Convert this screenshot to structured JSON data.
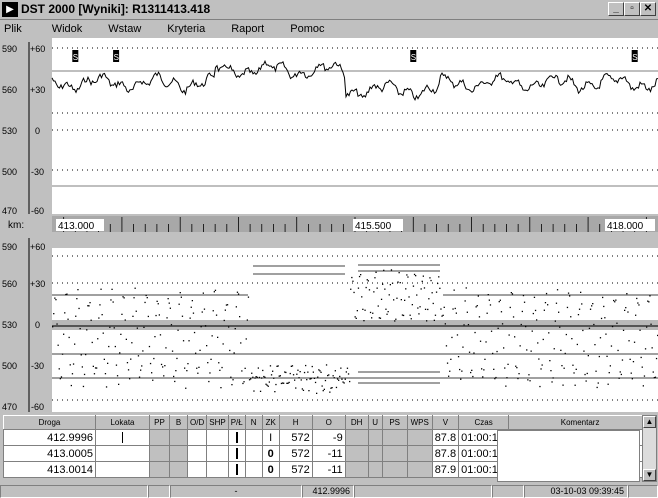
{
  "window": {
    "title": "DST 2000 [Wyniki]:  R1311413.418",
    "icon_glyph": "▶",
    "minimize_glyph": "_",
    "maximize_glyph": "▫",
    "close_glyph": "✕"
  },
  "menu": [
    "Plik",
    "Widok",
    "Wstaw",
    "Kryteria",
    "Raport",
    "Pomoc"
  ],
  "chart_data": [
    {
      "type": "line",
      "panel": "top",
      "y_left_ticks": [
        "590",
        "560",
        "530",
        "500",
        "470"
      ],
      "y_inner_ticks": [
        "+60",
        "+30",
        "0",
        "-30",
        "-60"
      ],
      "ylim": [
        470,
        590
      ],
      "markers": [
        "S",
        "S",
        "S",
        "S"
      ],
      "marker_km": [
        413.1,
        413.45,
        416.0,
        417.9
      ]
    },
    {
      "type": "line",
      "panel": "km-axis",
      "xlabel": "km:",
      "x_ticks": [
        "413.000",
        "415.500",
        "418.000"
      ]
    },
    {
      "type": "scatter",
      "panel": "bottom",
      "y_left_ticks": [
        "590",
        "560",
        "530",
        "500",
        "470"
      ],
      "y_inner_ticks": [
        "+60",
        "+30",
        "0",
        "-30",
        "-60"
      ],
      "ylim": [
        470,
        590
      ]
    }
  ],
  "table": {
    "headers": [
      "Droga",
      "Lokata",
      "PP",
      "B",
      "O/D",
      "SHP",
      "P/Ł",
      "N",
      "ZK",
      "H",
      "O",
      "DH",
      "U",
      "PS",
      "WPS",
      "V",
      "Czas",
      "Komentarz"
    ],
    "rows": [
      {
        "droga": "412.9996",
        "zk": "I",
        "h": "572",
        "o": "-9",
        "v": "87.8",
        "czas": "01:00:19"
      },
      {
        "droga": "413.0005",
        "zk": "0",
        "h": "572",
        "o": "-11",
        "v": "87.8",
        "czas": "01:00:19"
      },
      {
        "droga": "413.0014",
        "zk": "0",
        "h": "572",
        "o": "-11",
        "v": "87.9",
        "czas": "01:00:19"
      }
    ],
    "scroll_up": "▲",
    "scroll_down": "▼"
  },
  "status": {
    "dash": "-",
    "position": "412.9996",
    "datetime": "03-10-03 09:39:45"
  }
}
